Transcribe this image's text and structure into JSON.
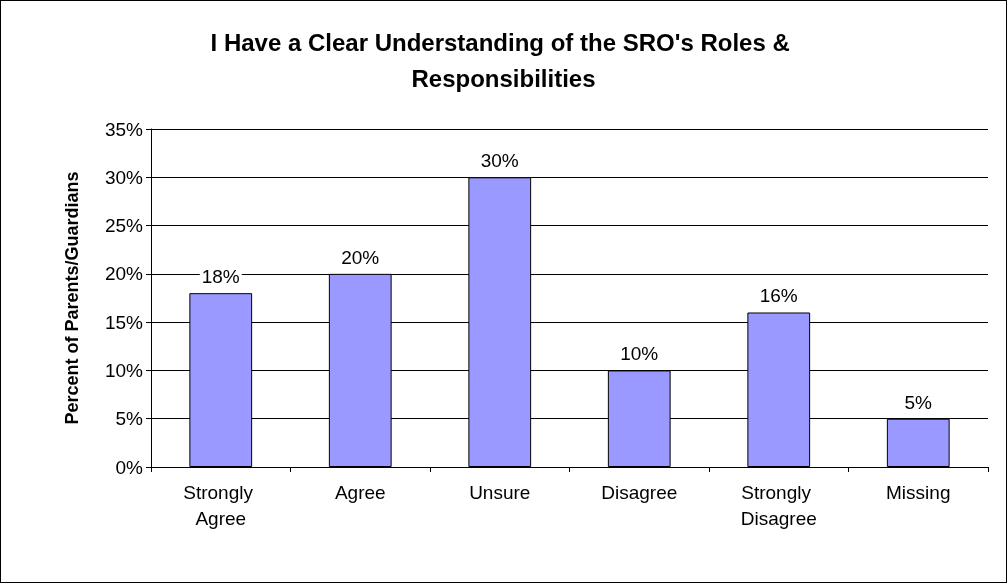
{
  "chart_data": {
    "type": "bar",
    "title": "I Have a Clear Understanding of the SRO's Roles & Responsibilities",
    "ylabel": "Percent of Parents/Guardians",
    "categories": [
      "Strongly Agree",
      "Agree",
      "Unsure",
      "Disagree",
      "Strongly Disagree",
      "Missing"
    ],
    "values": [
      18,
      20,
      30,
      10,
      16,
      5
    ],
    "value_labels": [
      "18%",
      "20%",
      "30%",
      "10%",
      "16%",
      "5%"
    ],
    "color": "#9999ff",
    "ylim": [
      0,
      35
    ],
    "yticks": [
      {
        "value": 0,
        "label": "0%"
      },
      {
        "value": 5,
        "label": "5%"
      },
      {
        "value": 10,
        "label": "10%"
      },
      {
        "value": 15,
        "label": "15%"
      },
      {
        "value": 20,
        "label": "20%"
      },
      {
        "value": 25,
        "label": "25%"
      },
      {
        "value": 30,
        "label": "30%"
      },
      {
        "value": 35,
        "label": "35%"
      }
    ],
    "grid": "y"
  }
}
